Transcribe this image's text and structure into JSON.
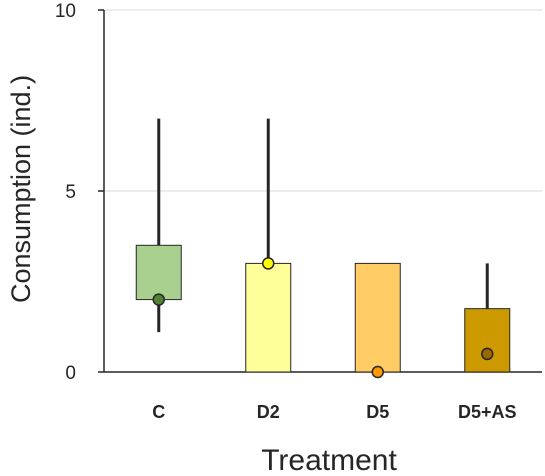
{
  "chart_data": {
    "type": "box",
    "xlabel": "Treatment",
    "ylabel": "Consumption (ind.)",
    "ylim": [
      0,
      10
    ],
    "yticks": [
      0,
      5,
      10
    ],
    "grid": true,
    "categories": [
      "C",
      "D2",
      "D5",
      "D5+AS"
    ],
    "boxes": [
      {
        "category": "C",
        "q1": 2,
        "q3": 3.5,
        "whisker_low": 1.1,
        "whisker_high": 7,
        "median": 2,
        "fill": "#a9d08e",
        "marker": "#548235"
      },
      {
        "category": "D2",
        "q1": 0,
        "q3": 3,
        "whisker_low": 0,
        "whisker_high": 7,
        "median": 3,
        "fill": "#ffff99",
        "marker": "#ffff00"
      },
      {
        "category": "D5",
        "q1": 0,
        "q3": 3,
        "whisker_low": 0,
        "whisker_high": 3,
        "median": 0,
        "fill": "#ffcc66",
        "marker": "#ff9900"
      },
      {
        "category": "D5+AS",
        "q1": 0,
        "q3": 1.75,
        "whisker_low": 0,
        "whisker_high": 3,
        "median": 0.5,
        "fill": "#cc9900",
        "marker": "#996600"
      }
    ]
  }
}
